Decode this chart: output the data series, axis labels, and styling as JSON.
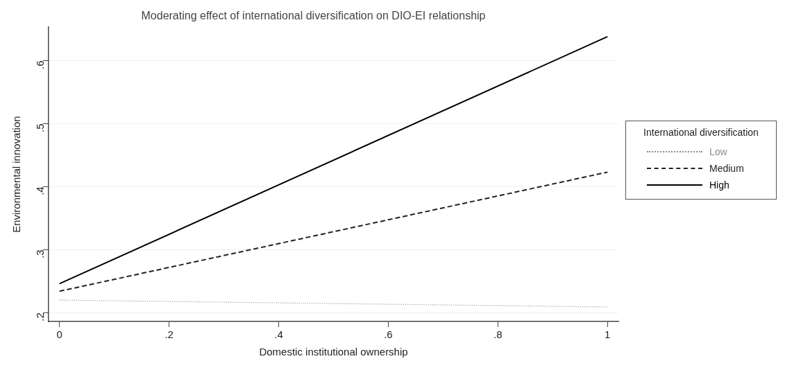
{
  "chart_data": {
    "type": "line",
    "title": "Moderating effect of international diversification on DIO-EI relationship",
    "xlabel": "Domestic institutional ownership",
    "ylabel": "Environmental innovation",
    "legend_title": "International diversification",
    "x": [
      0,
      1
    ],
    "series": [
      {
        "name": "Low",
        "color": "#8a8a8a",
        "line_style": "dotted",
        "values": [
          0.22,
          0.209
        ]
      },
      {
        "name": "Medium",
        "color": "#222222",
        "line_style": "dashed",
        "values": [
          0.234,
          0.423
        ]
      },
      {
        "name": "High",
        "color": "#000000",
        "line_style": "solid",
        "values": [
          0.246,
          0.638
        ]
      }
    ],
    "xlim": [
      -0.02,
      1.02
    ],
    "ylim": [
      0.186,
      0.653
    ],
    "xticks": [
      0,
      {
        "value": 0.2,
        "label": ".2"
      },
      {
        "value": 0.4,
        "label": ".4"
      },
      {
        "value": 0.6,
        "label": ".6"
      },
      {
        "value": 0.8,
        "label": ".8"
      },
      1
    ],
    "yticks": [
      {
        "value": 0.2,
        "label": ".2"
      },
      {
        "value": 0.3,
        "label": ".3"
      },
      {
        "value": 0.4,
        "label": ".4"
      },
      {
        "value": 0.5,
        "label": ".5"
      },
      {
        "value": 0.6,
        "label": ".6"
      }
    ],
    "grid": "y",
    "legend": "right",
    "marker": "none"
  }
}
